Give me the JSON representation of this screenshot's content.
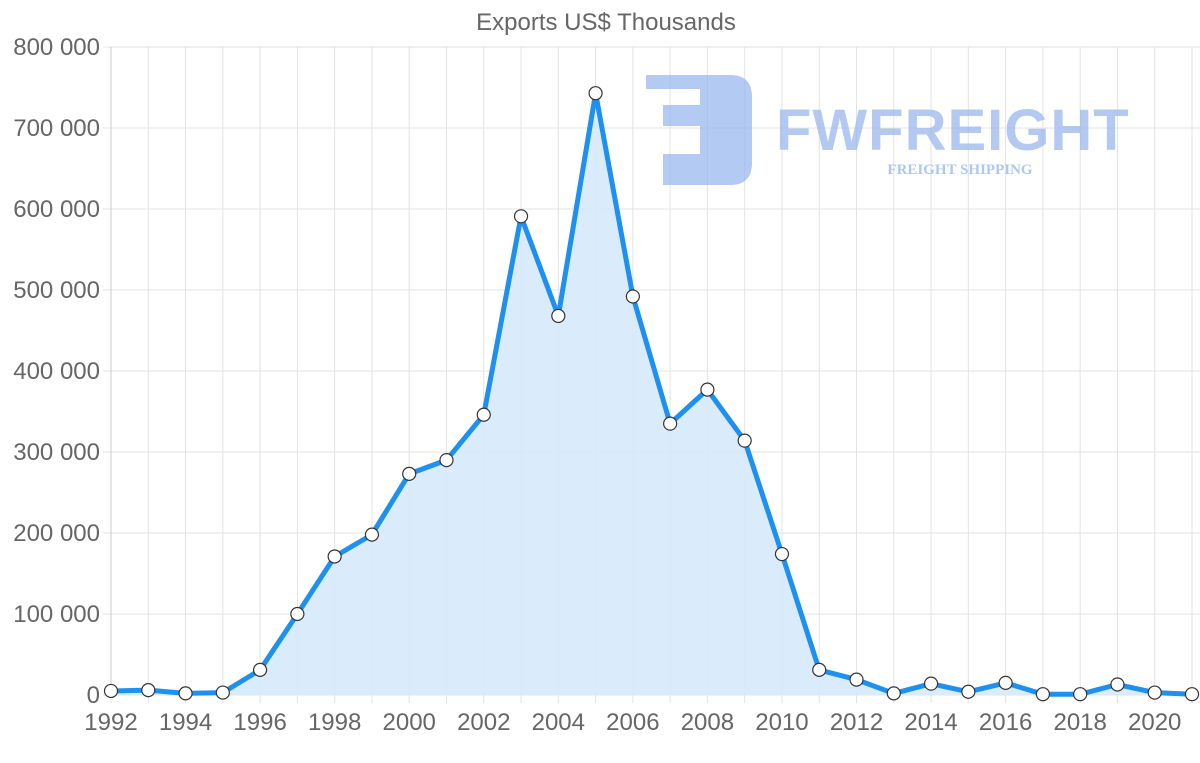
{
  "chart_data": {
    "type": "area",
    "title": "Exports US$ Thousands",
    "xlabel": "",
    "ylabel": "",
    "x": [
      1992,
      1993,
      1994,
      1995,
      1996,
      1997,
      1998,
      1999,
      2000,
      2001,
      2002,
      2003,
      2004,
      2005,
      2006,
      2007,
      2008,
      2009,
      2010,
      2011,
      2012,
      2013,
      2014,
      2015,
      2016,
      2017,
      2018,
      2019,
      2020,
      2021
    ],
    "series": [
      {
        "name": "Exports US$ Thousands",
        "values": [
          5000,
          6000,
          2000,
          3000,
          31000,
          100000,
          171000,
          198000,
          273000,
          290000,
          346000,
          591000,
          468000,
          743000,
          492000,
          335000,
          377000,
          314000,
          174000,
          31000,
          19000,
          2000,
          14000,
          4000,
          15000,
          1000,
          1000,
          13000,
          3000,
          1000
        ]
      }
    ],
    "ylim": [
      0,
      800000
    ],
    "yticks": [
      0,
      100000,
      200000,
      300000,
      400000,
      500000,
      600000,
      700000,
      800000
    ],
    "ytick_labels": [
      "0",
      "100 000",
      "200 000",
      "300 000",
      "400 000",
      "500 000",
      "600 000",
      "700 000",
      "800 000"
    ],
    "xtick_labels": [
      "1992",
      "1994",
      "1996",
      "1998",
      "2000",
      "2002",
      "2004",
      "2006",
      "2008",
      "2010",
      "2012",
      "2014",
      "2016",
      "2018",
      "2020"
    ],
    "grid": true,
    "legend": "none",
    "colors": {
      "line": "#1e90f0",
      "fill": "#d6eafc",
      "point_fill": "#ffffff",
      "point_stroke": "#333333",
      "grid": "#e3e3e3",
      "text": "#666666"
    }
  },
  "watermark": {
    "brand": "FWFREIGHT",
    "tagline": "FREIGHT SHIPPING",
    "color": "#9ab8ee"
  }
}
